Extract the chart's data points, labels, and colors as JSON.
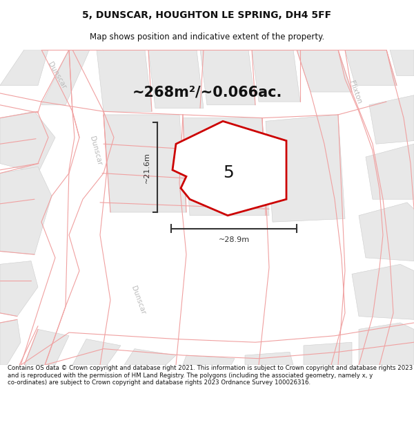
{
  "title_line1": "5, DUNSCAR, HOUGHTON LE SPRING, DH4 5FF",
  "title_line2": "Map shows position and indicative extent of the property.",
  "area_label": "~268m²/~0.066ac.",
  "property_number": "5",
  "dim_width": "~28.9m",
  "dim_height": "~21.6m",
  "footer_text": "Contains OS data © Crown copyright and database right 2021. This information is subject to Crown copyright and database rights 2023 and is reproduced with the permission of HM Land Registry. The polygons (including the associated geometry, namely x, y co-ordinates) are subject to Crown copyright and database rights 2023 Ordnance Survey 100026316.",
  "map_bg": "#ffffff",
  "page_bg": "#ffffff",
  "road_line": "#f0a0a0",
  "block_fill": "#e8e8e8",
  "block_edge": "#cccccc",
  "road_fill": "#ffffff",
  "property_fill": "#ffffff",
  "property_edge": "#cc0000",
  "dim_color": "#333333",
  "road_label_color": "#bbbbbb",
  "text_color": "#111111",
  "footer_color": "#111111",
  "fig_width": 6.0,
  "fig_height": 6.25,
  "title_fontsize": 10,
  "subtitle_fontsize": 8.5,
  "area_fontsize": 15,
  "prop_num_fontsize": 18,
  "dim_fontsize": 8,
  "road_label_fontsize": 7.5
}
